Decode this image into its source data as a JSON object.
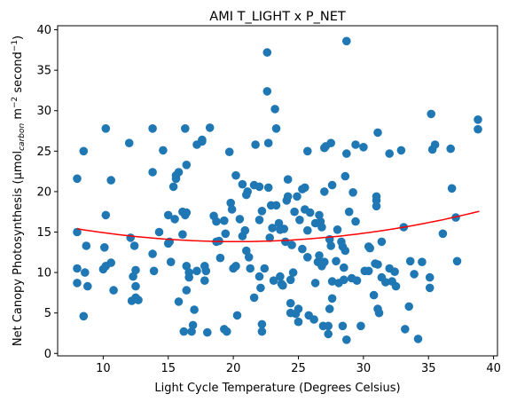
{
  "chart_data": {
    "type": "scatter",
    "title": "AMI T_LIGHT x P_NET",
    "xlabel": "Light Cycle Temperature (Degrees Celsius)",
    "ylabel": {
      "prefix": "Net Canopy Photosynthesis (µmol",
      "sub": "carbon",
      "mid1": " m",
      "sup1": "−2",
      "mid2": " second",
      "sup2": "−1",
      "suffix": ")"
    },
    "xlim": [
      6.5,
      40.3
    ],
    "ylim": [
      -0.3,
      40.5
    ],
    "xticks": [
      10,
      15,
      20,
      25,
      30,
      35,
      40
    ],
    "yticks": [
      0,
      5,
      10,
      15,
      20,
      25,
      30,
      35,
      40
    ],
    "grid": false,
    "colors": {
      "points": "#1f77b4",
      "fit": "#ff0000"
    },
    "points": [
      [
        8.0,
        21.6
      ],
      [
        8.0,
        15.0
      ],
      [
        8.0,
        10.5
      ],
      [
        8.0,
        8.7
      ],
      [
        8.5,
        25.0
      ],
      [
        8.5,
        4.6
      ],
      [
        8.7,
        13.3
      ],
      [
        8.6,
        10.0
      ],
      [
        8.8,
        8.3
      ],
      [
        10.2,
        27.8
      ],
      [
        10.2,
        17.1
      ],
      [
        10.1,
        13.1
      ],
      [
        10.0,
        10.4
      ],
      [
        10.2,
        10.8
      ],
      [
        10.6,
        21.4
      ],
      [
        10.6,
        11.2
      ],
      [
        10.8,
        7.8
      ],
      [
        12.0,
        26.0
      ],
      [
        12.1,
        14.3
      ],
      [
        12.2,
        6.5
      ],
      [
        12.4,
        13.3
      ],
      [
        12.5,
        10.3
      ],
      [
        12.5,
        8.3
      ],
      [
        12.5,
        6.9
      ],
      [
        12.7,
        6.6
      ],
      [
        12.3,
        9.5
      ],
      [
        13.8,
        27.8
      ],
      [
        13.8,
        22.4
      ],
      [
        13.8,
        12.3
      ],
      [
        13.9,
        10.2
      ],
      [
        14.3,
        15.0
      ],
      [
        14.6,
        25.1
      ],
      [
        15.0,
        17.1
      ],
      [
        15.1,
        13.8
      ],
      [
        15.2,
        11.3
      ],
      [
        15.0,
        13.6
      ],
      [
        15.4,
        20.6
      ],
      [
        15.5,
        16.6
      ],
      [
        15.6,
        22.0
      ],
      [
        15.6,
        21.6
      ],
      [
        15.8,
        22.4
      ],
      [
        15.8,
        6.4
      ],
      [
        16.1,
        17.5
      ],
      [
        16.1,
        14.7
      ],
      [
        16.3,
        27.8
      ],
      [
        16.3,
        17.1
      ],
      [
        16.4,
        23.3
      ],
      [
        16.4,
        17.4
      ],
      [
        16.6,
        10.0
      ],
      [
        16.6,
        9.4
      ],
      [
        16.2,
        2.7
      ],
      [
        16.4,
        10.8
      ],
      [
        16.4,
        7.8
      ],
      [
        16.8,
        2.7
      ],
      [
        16.9,
        3.5
      ],
      [
        17.0,
        5.4
      ],
      [
        17.2,
        25.8
      ],
      [
        17.2,
        10.2
      ],
      [
        17.6,
        26.2
      ],
      [
        17.6,
        26.4
      ],
      [
        17.8,
        10.8
      ],
      [
        17.8,
        9.0
      ],
      [
        17.9,
        10.2
      ],
      [
        18.0,
        2.6
      ],
      [
        18.2,
        27.9
      ],
      [
        18.5,
        17.0
      ],
      [
        18.7,
        16.3
      ],
      [
        18.7,
        13.8
      ],
      [
        18.9,
        13.9
      ],
      [
        19.0,
        11.8
      ],
      [
        19.3,
        16.4
      ],
      [
        19.3,
        3.0
      ],
      [
        19.4,
        14.8
      ],
      [
        19.5,
        2.7
      ],
      [
        19.7,
        24.9
      ],
      [
        19.8,
        18.6
      ],
      [
        19.9,
        17.8
      ],
      [
        20.0,
        10.5
      ],
      [
        20.2,
        10.8
      ],
      [
        20.3,
        4.7
      ],
      [
        20.2,
        22.0
      ],
      [
        20.5,
        16.6
      ],
      [
        20.7,
        20.9
      ],
      [
        20.7,
        14.5
      ],
      [
        20.9,
        15.2
      ],
      [
        21.0,
        19.6
      ],
      [
        21.1,
        20.0
      ],
      [
        21.0,
        12.7
      ],
      [
        21.2,
        11.9
      ],
      [
        21.3,
        10.5
      ],
      [
        21.6,
        20.8
      ],
      [
        21.6,
        6.9
      ],
      [
        21.7,
        25.8
      ],
      [
        22.0,
        20.6
      ],
      [
        22.0,
        16.5
      ],
      [
        22.0,
        9.5
      ],
      [
        22.1,
        8.1
      ],
      [
        22.2,
        3.6
      ],
      [
        22.2,
        2.7
      ],
      [
        22.2,
        17.6
      ],
      [
        22.4,
        10.5
      ],
      [
        22.6,
        32.4
      ],
      [
        22.6,
        37.2
      ],
      [
        22.7,
        20.5
      ],
      [
        22.7,
        26.0
      ],
      [
        22.8,
        14.3
      ],
      [
        22.9,
        18.3
      ],
      [
        23.0,
        15.5
      ],
      [
        23.1,
        9.0
      ],
      [
        23.2,
        30.2
      ],
      [
        23.3,
        27.8
      ],
      [
        23.3,
        18.3
      ],
      [
        23.5,
        16.1
      ],
      [
        23.6,
        15.3
      ],
      [
        23.6,
        9.5
      ],
      [
        23.7,
        8.6
      ],
      [
        23.8,
        8.4
      ],
      [
        23.9,
        15.4
      ],
      [
        24.0,
        13.8
      ],
      [
        24.1,
        18.9
      ],
      [
        24.2,
        21.5
      ],
      [
        24.2,
        19.4
      ],
      [
        24.4,
        9.1
      ],
      [
        24.4,
        6.2
      ],
      [
        24.5,
        13.4
      ],
      [
        24.4,
        5.0
      ],
      [
        24.8,
        4.9
      ],
      [
        24.7,
        17.5
      ],
      [
        24.9,
        19.4
      ],
      [
        24.6,
        10.0
      ],
      [
        25.0,
        5.5
      ],
      [
        25.0,
        3.9
      ],
      [
        25.1,
        16.5
      ],
      [
        25.3,
        12.9
      ],
      [
        25.3,
        20.3
      ],
      [
        25.5,
        20.5
      ],
      [
        25.5,
        17.8
      ],
      [
        25.7,
        25.0
      ],
      [
        25.7,
        15.2
      ],
      [
        25.7,
        11.9
      ],
      [
        25.9,
        17.4
      ],
      [
        25.8,
        4.7
      ],
      [
        26.2,
        4.2
      ],
      [
        26.3,
        16.1
      ],
      [
        26.3,
        8.7
      ],
      [
        26.5,
        11.3
      ],
      [
        26.6,
        12.1
      ],
      [
        26.6,
        17.1
      ],
      [
        26.7,
        16.3
      ],
      [
        26.8,
        10.8
      ],
      [
        26.8,
        15.6
      ],
      [
        26.9,
        3.4
      ],
      [
        27.0,
        20.0
      ],
      [
        27.0,
        25.4
      ],
      [
        27.1,
        25.6
      ],
      [
        27.0,
        11.3
      ],
      [
        27.3,
        3.4
      ],
      [
        27.3,
        2.4
      ],
      [
        27.4,
        14.1
      ],
      [
        27.5,
        26.0
      ],
      [
        27.5,
        13.3
      ],
      [
        27.6,
        6.8
      ],
      [
        27.4,
        5.5
      ],
      [
        27.6,
        8.9
      ],
      [
        27.6,
        20.8
      ],
      [
        27.9,
        11.4
      ],
      [
        28.0,
        15.3
      ],
      [
        28.1,
        8.7
      ],
      [
        28.3,
        13.8
      ],
      [
        28.4,
        13.2
      ],
      [
        28.4,
        3.4
      ],
      [
        28.5,
        10.6
      ],
      [
        28.5,
        9.1
      ],
      [
        28.6,
        21.9
      ],
      [
        28.6,
        12.7
      ],
      [
        28.7,
        38.6
      ],
      [
        28.7,
        1.7
      ],
      [
        28.7,
        24.7
      ],
      [
        28.9,
        17.5
      ],
      [
        29.1,
        9.3
      ],
      [
        29.2,
        19.9
      ],
      [
        29.4,
        25.8
      ],
      [
        29.5,
        9.0
      ],
      [
        29.4,
        16.3
      ],
      [
        29.8,
        3.4
      ],
      [
        30.0,
        25.5
      ],
      [
        30.1,
        10.2
      ],
      [
        30.4,
        13.2
      ],
      [
        30.4,
        10.2
      ],
      [
        30.5,
        13.0
      ],
      [
        30.8,
        7.2
      ],
      [
        30.9,
        11.1
      ],
      [
        31.0,
        18.9
      ],
      [
        31.0,
        19.4
      ],
      [
        31.1,
        11.0
      ],
      [
        31.1,
        27.3
      ],
      [
        31.1,
        5.5
      ],
      [
        31.0,
        18.2
      ],
      [
        31.2,
        5.0
      ],
      [
        31.4,
        13.8
      ],
      [
        31.4,
        9.4
      ],
      [
        31.7,
        8.8
      ],
      [
        32.0,
        24.7
      ],
      [
        32.0,
        10.5
      ],
      [
        32.2,
        8.9
      ],
      [
        32.4,
        10.1
      ],
      [
        32.5,
        8.3
      ],
      [
        32.9,
        25.1
      ],
      [
        33.1,
        15.6
      ],
      [
        33.2,
        3.0
      ],
      [
        33.5,
        5.8
      ],
      [
        33.6,
        11.4
      ],
      [
        33.9,
        9.8
      ],
      [
        34.2,
        1.8
      ],
      [
        34.5,
        11.3
      ],
      [
        35.1,
        9.4
      ],
      [
        35.1,
        8.1
      ],
      [
        35.2,
        29.6
      ],
      [
        35.3,
        25.2
      ],
      [
        35.5,
        25.8
      ],
      [
        36.1,
        14.8
      ],
      [
        36.7,
        25.3
      ],
      [
        36.8,
        20.4
      ],
      [
        37.1,
        16.8
      ],
      [
        37.2,
        11.4
      ],
      [
        38.8,
        28.9
      ],
      [
        38.8,
        27.7
      ]
    ],
    "fit": {
      "label": "",
      "x_range": [
        8.0,
        38.9
      ],
      "coefficients": [
        0.0107,
        -0.432,
        18.18
      ]
    }
  }
}
